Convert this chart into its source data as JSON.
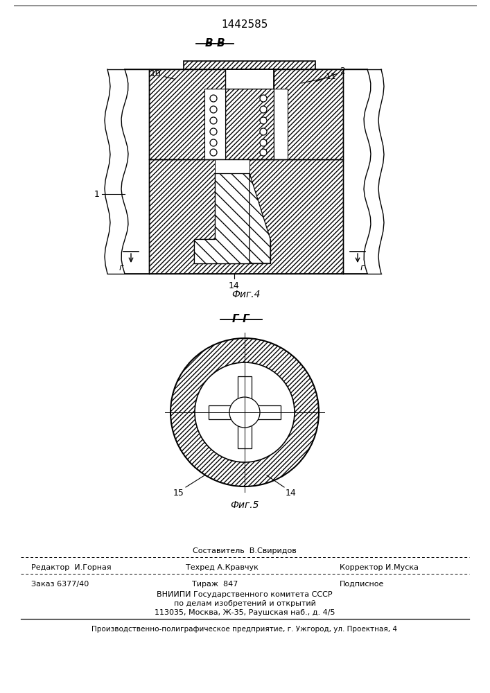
{
  "patent_number": "1442585",
  "fig4_label": "В-В",
  "fig4_caption": "Фиг.4",
  "fig5_label": "Г-Г",
  "fig5_caption": "Фиг.5",
  "label_1": "1",
  "label_2": "2",
  "label_10": "10",
  "label_11": "11",
  "label_14_fig4": "14",
  "label_14_fig5": "14",
  "label_15": "15",
  "label_G": "г",
  "footer_editor": "Редактор  И.Горная",
  "footer_composer": "Составитель  В.Свиридов",
  "footer_techred": "Техред А.Кравчук",
  "footer_corrector": "Корректор И.Муска",
  "footer_order": "Заказ 6377/40",
  "footer_tirazh": "Тираж  847",
  "footer_podpisnoe": "Подписное",
  "footer_line4": "ВНИИПИ Государственного комитета СССР",
  "footer_line5": "по делам изобретений и открытий",
  "footer_line6": "113035, Москва, Ж-35, Раушская наб., д. 4/5",
  "footer_bottom": "Производственно-полиграфическое предприятие, г. Ужгород, ул. Проектная, 4",
  "bg_color": "#ffffff",
  "line_color": "#000000"
}
